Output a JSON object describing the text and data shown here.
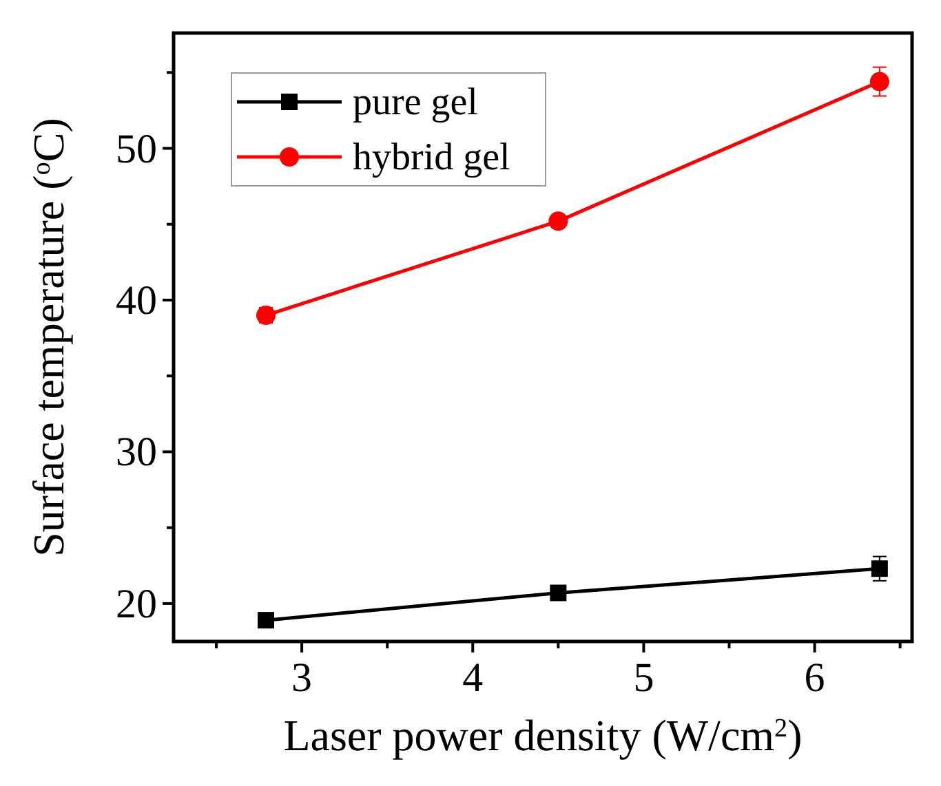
{
  "chart_data": {
    "type": "line",
    "xlabel": "Laser power density (W/cm$^{2}$)",
    "ylabel": "Surface temperature ($^{o}$C)",
    "x": [
      2.79,
      4.5,
      6.38
    ],
    "xlim": [
      2.25,
      6.57
    ],
    "ylim": [
      17.5,
      57.6
    ],
    "xticks": [
      {
        "value": 2.5,
        "label": null
      },
      3,
      {
        "value": 3.5,
        "label": null
      },
      4,
      {
        "value": 4.5,
        "label": null
      },
      5,
      {
        "value": 5.5,
        "label": null
      },
      6,
      {
        "value": 6.5,
        "label": null
      }
    ],
    "yticks": [
      20,
      {
        "value": 25,
        "label": null
      },
      30,
      {
        "value": 35,
        "label": null
      },
      40,
      {
        "value": 45,
        "label": null
      },
      50,
      {
        "value": 55,
        "label": null
      }
    ],
    "legend": "top left",
    "grid": false,
    "line_style": "solid",
    "series": [
      {
        "name": "pure gel",
        "color": "#000000",
        "marker": "square",
        "values": [
          18.9,
          20.7,
          22.3
        ],
        "errors": [
          0.3,
          0.3,
          0.8
        ]
      },
      {
        "name": "hybrid gel",
        "color": "#ff0000",
        "marker": "circle",
        "values": [
          39.0,
          45.2,
          54.4
        ],
        "errors": [
          0.5,
          0.4,
          0.95
        ]
      }
    ]
  }
}
